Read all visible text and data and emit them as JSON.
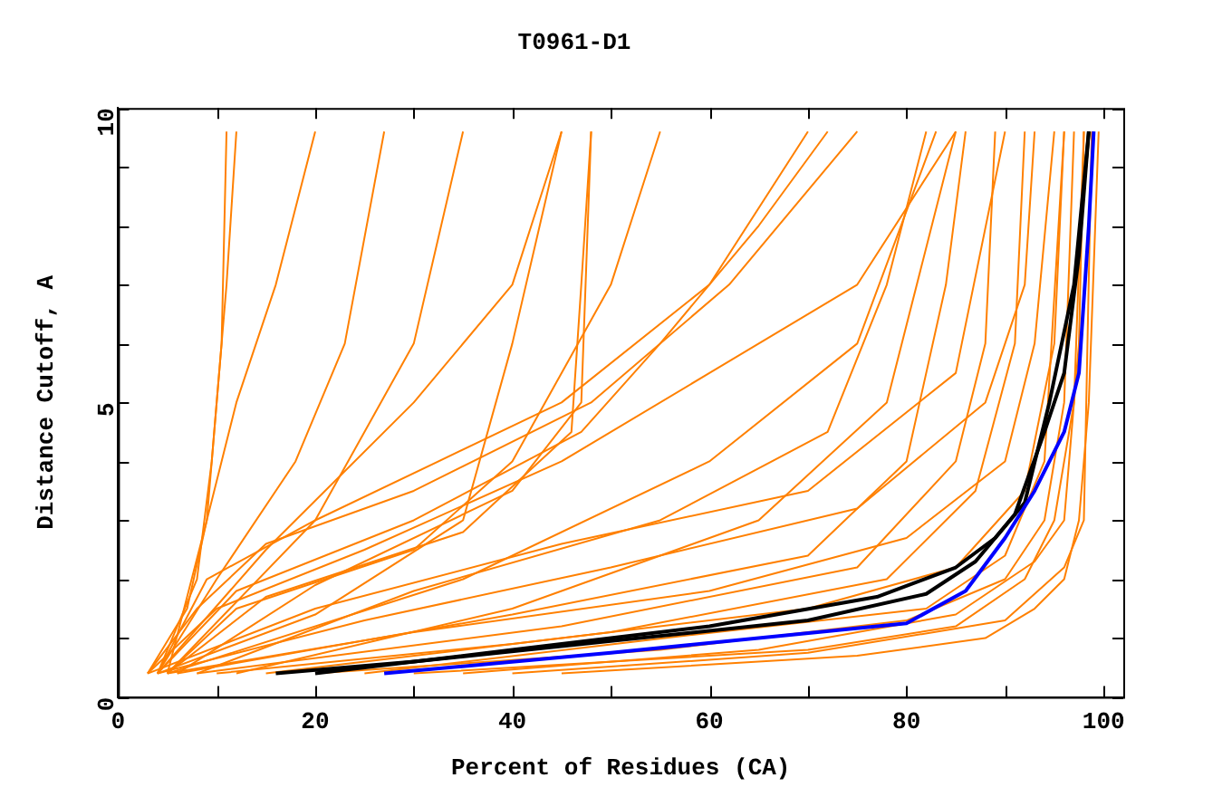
{
  "chart_data": {
    "type": "line",
    "title": "T0961-D1",
    "xlabel": "Percent of Residues (CA)",
    "ylabel": "Distance Cutoff, A",
    "xlim": [
      0,
      102
    ],
    "ylim": [
      0,
      10
    ],
    "xticks": [
      0,
      {
        "value": 10,
        "label": null
      },
      20,
      {
        "value": 30,
        "label": null
      },
      40,
      {
        "value": 50,
        "label": null
      },
      60,
      {
        "value": 70,
        "label": null
      },
      80,
      {
        "value": 90,
        "label": null
      },
      100
    ],
    "yticks": [
      0,
      {
        "value": 1,
        "label": null
      },
      {
        "value": 2,
        "label": null
      },
      {
        "value": 3,
        "label": null
      },
      {
        "value": 4,
        "label": null
      },
      5,
      {
        "value": 6,
        "label": null
      },
      {
        "value": 7,
        "label": null
      },
      {
        "value": 8,
        "label": null
      },
      {
        "value": 9,
        "label": null
      },
      10
    ],
    "grid": false,
    "legend": false,
    "marker": "none",
    "line_style": "solid",
    "series": [
      {
        "color": "#ff8000",
        "x": [
          45,
          75,
          88,
          93,
          96,
          97.5,
          98.5,
          99.5
        ],
        "values": [
          0.4,
          0.7,
          1,
          1.5,
          2,
          3,
          5,
          9.6
        ]
      },
      {
        "color": "#ff8000",
        "x": [
          30,
          70,
          85,
          92,
          95,
          97,
          98
        ],
        "values": [
          0.4,
          0.8,
          1.2,
          2,
          3,
          5,
          9.6
        ]
      },
      {
        "color": "#ff8000",
        "x": [
          20,
          55,
          80,
          90,
          94,
          96,
          97
        ],
        "values": [
          0.4,
          0.8,
          1.3,
          2,
          3,
          5,
          9.6
        ]
      },
      {
        "color": "#ff8000",
        "x": [
          10,
          40,
          70,
          85,
          92,
          95,
          96
        ],
        "values": [
          0.4,
          0.9,
          1.5,
          2.2,
          3.5,
          6,
          9.6
        ]
      },
      {
        "color": "#ff8000",
        "x": [
          5,
          30,
          60,
          80,
          90,
          93,
          95
        ],
        "values": [
          0.4,
          1.1,
          1.8,
          2.7,
          4,
          6,
          9.6
        ]
      },
      {
        "color": "#ff8000",
        "x": [
          4,
          25,
          50,
          75,
          88,
          92,
          93
        ],
        "values": [
          0.4,
          1.3,
          2.2,
          3.2,
          5,
          7,
          9.6
        ]
      },
      {
        "color": "#ff8000",
        "x": [
          3,
          20,
          45,
          70,
          85,
          90
        ],
        "values": [
          0.4,
          1.5,
          2.6,
          3.5,
          5.5,
          9.6
        ]
      },
      {
        "color": "#ff8000",
        "x": [
          3,
          10,
          25,
          45,
          60,
          75,
          85
        ],
        "values": [
          0.4,
          1.5,
          2.5,
          4,
          5.5,
          7,
          9.6
        ]
      },
      {
        "color": "#ff8000",
        "x": [
          4,
          12,
          30,
          47,
          55,
          65,
          72
        ],
        "values": [
          0.4,
          1.8,
          3,
          4.5,
          6,
          8,
          9.6
        ]
      },
      {
        "color": "#ff8000",
        "x": [
          3,
          8,
          15,
          30,
          48,
          62,
          75
        ],
        "values": [
          0.4,
          1.5,
          2.6,
          3.5,
          5,
          7,
          9.6
        ]
      },
      {
        "color": "#ff8000",
        "x": [
          4,
          9,
          20,
          45,
          60,
          70
        ],
        "values": [
          0.4,
          2,
          3,
          5,
          7,
          9.6
        ]
      },
      {
        "color": "#ff8000",
        "x": [
          3,
          7,
          9,
          10,
          11,
          12
        ],
        "values": [
          0.4,
          1.5,
          3,
          5,
          7,
          9.6
        ]
      },
      {
        "color": "#ff8000",
        "x": [
          4,
          8,
          9.5,
          10.5,
          11
        ],
        "values": [
          0.4,
          2,
          4,
          6,
          9.6
        ]
      },
      {
        "color": "#ff8000",
        "x": [
          5,
          9,
          12,
          16,
          20
        ],
        "values": [
          0.4,
          3,
          5,
          7,
          9.6
        ]
      },
      {
        "color": "#ff8000",
        "x": [
          4,
          10,
          18,
          23,
          27
        ],
        "values": [
          0.4,
          2,
          4,
          6,
          9.6
        ]
      },
      {
        "color": "#ff8000",
        "x": [
          5,
          15,
          35,
          46,
          47,
          48
        ],
        "values": [
          0.4,
          1.7,
          2.8,
          4.5,
          7,
          9.6
        ]
      },
      {
        "color": "#ff8000",
        "x": [
          6,
          20,
          40,
          47,
          48
        ],
        "values": [
          0.4,
          1.9,
          3.5,
          5,
          9.6
        ]
      },
      {
        "color": "#ff8000",
        "x": [
          5,
          12,
          30,
          40,
          50,
          55
        ],
        "values": [
          0.4,
          1.5,
          2.5,
          4,
          7,
          9.6
        ]
      },
      {
        "color": "#ff8000",
        "x": [
          4,
          20,
          35,
          40,
          45
        ],
        "values": [
          0.4,
          1.4,
          3,
          6,
          9.6
        ]
      },
      {
        "color": "#ff8000",
        "x": [
          6,
          40,
          70,
          80,
          84,
          86
        ],
        "values": [
          0.4,
          1.4,
          2.4,
          4,
          7,
          9.6
        ]
      },
      {
        "color": "#ff8000",
        "x": [
          8,
          45,
          75,
          85,
          88,
          89
        ],
        "values": [
          0.4,
          1.2,
          2.2,
          4,
          6,
          9.6
        ]
      },
      {
        "color": "#ff8000",
        "x": [
          15,
          50,
          78,
          87,
          91,
          92
        ],
        "values": [
          0.4,
          1.1,
          2,
          3.5,
          6,
          9.6
        ]
      },
      {
        "color": "#ff8000",
        "x": [
          35,
          65,
          85,
          93,
          96,
          97.5,
          98
        ],
        "values": [
          0.4,
          0.8,
          1.4,
          2.3,
          3,
          6,
          9.6
        ]
      },
      {
        "color": "#ff8000",
        "x": [
          40,
          70,
          90,
          96,
          98,
          98.8
        ],
        "values": [
          0.4,
          0.75,
          1.3,
          2.2,
          3,
          9.6
        ]
      },
      {
        "color": "#ff8000",
        "x": [
          8,
          30,
          55,
          72,
          78,
          82
        ],
        "values": [
          0.4,
          1.8,
          3,
          4.5,
          7,
          9.6
        ]
      },
      {
        "color": "#ff8000",
        "x": [
          5,
          35,
          60,
          75,
          83
        ],
        "values": [
          0.4,
          2,
          4,
          6,
          9.6
        ]
      },
      {
        "color": "#ff8000",
        "x": [
          12,
          40,
          65,
          78,
          85
        ],
        "values": [
          0.4,
          1.5,
          3,
          5,
          9.6
        ]
      },
      {
        "color": "#ff8000",
        "x": [
          4,
          15,
          30,
          40,
          45
        ],
        "values": [
          0.4,
          2.5,
          5,
          7,
          9.6
        ]
      },
      {
        "color": "#ff8000",
        "x": [
          5,
          20,
          30,
          35
        ],
        "values": [
          0.4,
          3,
          6,
          9.6
        ]
      },
      {
        "color": "#ff8000",
        "x": [
          25,
          58,
          82,
          90,
          94,
          96
        ],
        "values": [
          0.4,
          1.05,
          1.5,
          2.4,
          4,
          9.6
        ]
      },
      {
        "color": "#000000",
        "x": [
          16,
          30,
          50,
          70,
          82,
          87,
          91,
          94,
          96,
          97.5,
          98.5
        ],
        "values": [
          0.4,
          0.6,
          0.95,
          1.3,
          1.75,
          2.3,
          3.1,
          4.5,
          5.5,
          7.5,
          9.6
        ]
      },
      {
        "color": "#000000",
        "x": [
          20,
          40,
          60,
          77,
          85,
          89,
          92,
          94.5,
          97,
          98.5
        ],
        "values": [
          0.4,
          0.8,
          1.2,
          1.7,
          2.2,
          2.7,
          3.3,
          5,
          7,
          9.6
        ]
      },
      {
        "color": "#0000ff",
        "x": [
          27,
          50,
          80,
          86,
          90,
          93,
          96,
          97.5,
          98.5,
          99
        ],
        "values": [
          0.4,
          0.75,
          1.25,
          1.8,
          2.7,
          3.5,
          4.5,
          5.5,
          8,
          9.6
        ]
      }
    ]
  }
}
